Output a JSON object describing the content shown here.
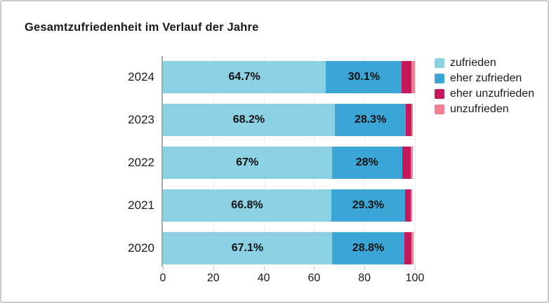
{
  "title": "Gesamtzufriedenheit im Verlauf der Jahre",
  "colors": {
    "zufrieden": "#8CD0E4",
    "eher_zufrieden": "#3BA6D6",
    "eher_unzufrieden": "#C5195D",
    "unzufrieden": "#F27E93",
    "frame_border": "#CBCBCB",
    "axis_line": "#A6A6A6",
    "gridline": "#EDEDED",
    "text": "#1A1A1A"
  },
  "chart_data": {
    "type": "bar",
    "orientation": "horizontal",
    "stacked": true,
    "title": "Gesamtzufriedenheit im Verlauf der Jahre",
    "categories": [
      "2024",
      "2023",
      "2022",
      "2021",
      "2020"
    ],
    "series": [
      {
        "name": "zufrieden",
        "color": "#8CD0E4",
        "values": [
          64.7,
          68.2,
          67,
          66.8,
          67.1
        ],
        "labels": [
          "64.7%",
          "68.2%",
          "67%",
          "66.8%",
          "67.1%"
        ]
      },
      {
        "name": "eher zufrieden",
        "color": "#3BA6D6",
        "values": [
          30.1,
          28.3,
          28,
          29.3,
          28.8
        ],
        "labels": [
          "30.1%",
          "28.3%",
          "28%",
          "29.3%",
          "28.8%"
        ]
      },
      {
        "name": "eher unzufrieden",
        "color": "#C5195D",
        "values": [
          3.9,
          2.0,
          3.3,
          2.2,
          2.8
        ],
        "labels": [
          "",
          "",
          "",
          "",
          ""
        ]
      },
      {
        "name": "unzufrieden",
        "color": "#F27E93",
        "values": [
          1.2,
          0.7,
          0.8,
          0.7,
          0.8
        ],
        "labels": [
          "",
          "",
          "",
          "",
          ""
        ]
      }
    ],
    "xlim": [
      0,
      100
    ],
    "x_ticks": [
      0,
      20,
      40,
      60,
      80,
      100
    ],
    "grid": true,
    "legend_position": "right"
  }
}
